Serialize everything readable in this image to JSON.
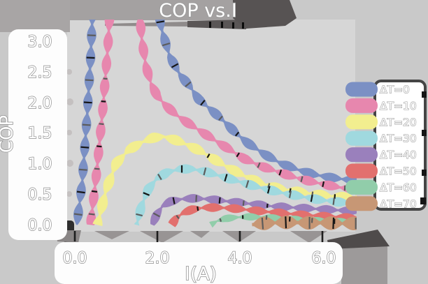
{
  "title": "COP vs.I",
  "x_axis": {
    "label": "I(A)",
    "ticks": [
      "0.0",
      "2.0",
      "4.0",
      "6.0"
    ]
  },
  "y_axis": {
    "label": "COP",
    "ticks": [
      "3.0",
      "2.5",
      "2.0",
      "1.5",
      "1.0",
      "0.5",
      "0.0"
    ]
  },
  "legend": {
    "entries": [
      {
        "label": "ΔT=0",
        "color": "#7b90c4"
      },
      {
        "label": "ΔT=10",
        "color": "#e787ae"
      },
      {
        "label": "ΔT=20",
        "color": "#f2ee8f"
      },
      {
        "label": "ΔT=30",
        "color": "#a0d9df"
      },
      {
        "label": "ΔT=40",
        "color": "#9a80bc"
      },
      {
        "label": "ΔT=50",
        "color": "#e2706e"
      },
      {
        "label": "ΔT=60",
        "color": "#91cdaa"
      },
      {
        "label": "ΔT=70",
        "color": "#c79775"
      }
    ]
  },
  "chart_data": {
    "type": "line",
    "style": "hand-drawn ribbon strokes with tick markers",
    "title": "COP vs.I",
    "xlabel": "I(A)",
    "ylabel": "COP",
    "xlim": [
      -0.2,
      6.9
    ],
    "ylim": [
      -0.12,
      3.35
    ],
    "x_ticks": [
      0.0,
      2.0,
      4.0,
      6.0
    ],
    "y_ticks": [
      0.0,
      0.5,
      1.0,
      1.5,
      2.0,
      2.5,
      3.0
    ],
    "grid": false,
    "legend_position": "right",
    "series": [
      {
        "name": "ΔT=0",
        "color": "#7b90c4",
        "width": 13,
        "points": [
          [
            0.05,
            0
          ],
          [
            0.18,
            0.7
          ],
          [
            0.3,
            1.8
          ],
          [
            0.38,
            2.7
          ],
          [
            0.44,
            3.6
          ],
          [
            2.0,
            3.6
          ],
          [
            2.1,
            3.2
          ],
          [
            2.3,
            2.75
          ],
          [
            2.55,
            2.45
          ],
          [
            2.8,
            2.25
          ],
          [
            3.0,
            2.05
          ],
          [
            3.3,
            1.88
          ],
          [
            3.6,
            1.7
          ],
          [
            3.9,
            1.5
          ],
          [
            4.2,
            1.33
          ],
          [
            4.6,
            1.15
          ],
          [
            5.0,
            1.0
          ],
          [
            5.4,
            0.9
          ],
          [
            5.8,
            0.82
          ],
          [
            6.2,
            0.77
          ],
          [
            6.55,
            0.74
          ],
          [
            6.85,
            0.72
          ]
        ]
      },
      {
        "name": "ΔT=10",
        "color": "#e787ae",
        "width": 13,
        "points": [
          [
            0.38,
            0
          ],
          [
            0.52,
            0.8
          ],
          [
            0.68,
            1.9
          ],
          [
            0.8,
            2.9
          ],
          [
            0.86,
            3.6
          ],
          [
            1.55,
            3.6
          ],
          [
            1.62,
            3.05
          ],
          [
            1.72,
            2.6
          ],
          [
            1.85,
            2.3
          ],
          [
            2.0,
            2.1
          ],
          [
            2.2,
            1.95
          ],
          [
            2.45,
            1.8
          ],
          [
            2.7,
            1.68
          ],
          [
            3.0,
            1.55
          ],
          [
            3.3,
            1.42
          ],
          [
            3.7,
            1.25
          ],
          [
            4.1,
            1.08
          ],
          [
            4.5,
            0.96
          ],
          [
            4.9,
            0.87
          ],
          [
            5.3,
            0.78
          ],
          [
            5.7,
            0.71
          ],
          [
            6.1,
            0.65
          ],
          [
            6.5,
            0.6
          ],
          [
            6.85,
            0.58
          ]
        ]
      },
      {
        "name": "ΔT=20",
        "color": "#f2ee8f",
        "width": 14,
        "points": [
          [
            0.55,
            0
          ],
          [
            0.75,
            0.55
          ],
          [
            1.0,
            1.0
          ],
          [
            1.3,
            1.22
          ],
          [
            1.6,
            1.34
          ],
          [
            1.9,
            1.42
          ],
          [
            2.15,
            1.44
          ],
          [
            2.45,
            1.38
          ],
          [
            2.75,
            1.3
          ],
          [
            3.05,
            1.2
          ],
          [
            3.35,
            1.08
          ],
          [
            3.7,
            0.94
          ],
          [
            4.1,
            0.8
          ],
          [
            4.5,
            0.68
          ],
          [
            4.9,
            0.6
          ],
          [
            5.3,
            0.55
          ],
          [
            5.8,
            0.5
          ],
          [
            6.3,
            0.46
          ],
          [
            6.85,
            0.44
          ]
        ]
      },
      {
        "name": "ΔT=30",
        "color": "#a0d9df",
        "width": 13,
        "points": [
          [
            1.5,
            0
          ],
          [
            1.62,
            0.32
          ],
          [
            1.78,
            0.58
          ],
          [
            1.98,
            0.75
          ],
          [
            2.25,
            0.86
          ],
          [
            2.55,
            0.91
          ],
          [
            2.85,
            0.91
          ],
          [
            3.15,
            0.87
          ],
          [
            3.5,
            0.8
          ],
          [
            3.9,
            0.72
          ],
          [
            4.3,
            0.64
          ],
          [
            4.7,
            0.57
          ],
          [
            5.1,
            0.51
          ],
          [
            5.5,
            0.46
          ],
          [
            5.9,
            0.41
          ],
          [
            6.4,
            0.37
          ],
          [
            6.85,
            0.35
          ]
        ]
      },
      {
        "name": "ΔT=40",
        "color": "#9a80bc",
        "width": 12,
        "points": [
          [
            1.88,
            0
          ],
          [
            1.98,
            0.16
          ],
          [
            2.12,
            0.3
          ],
          [
            2.32,
            0.38
          ],
          [
            2.6,
            0.42
          ],
          [
            2.9,
            0.43
          ],
          [
            3.2,
            0.42
          ],
          [
            3.6,
            0.39
          ],
          [
            4.0,
            0.36
          ],
          [
            4.4,
            0.33
          ],
          [
            4.8,
            0.3
          ],
          [
            5.3,
            0.28
          ],
          [
            5.8,
            0.26
          ],
          [
            6.3,
            0.24
          ],
          [
            6.85,
            0.22
          ]
        ]
      },
      {
        "name": "ΔT=50",
        "color": "#e2706e",
        "width": 12,
        "points": [
          [
            2.35,
            0
          ],
          [
            2.46,
            0.11
          ],
          [
            2.62,
            0.19
          ],
          [
            2.85,
            0.25
          ],
          [
            3.15,
            0.28
          ],
          [
            3.45,
            0.28
          ],
          [
            3.75,
            0.27
          ],
          [
            4.1,
            0.25
          ],
          [
            4.5,
            0.22
          ],
          [
            5.0,
            0.19
          ],
          [
            5.5,
            0.16
          ],
          [
            6.0,
            0.14
          ],
          [
            6.45,
            0.12
          ],
          [
            6.85,
            0.11
          ]
        ]
      },
      {
        "name": "ΔT=60",
        "color": "#91cdaa",
        "width": 10,
        "points": [
          [
            3.3,
            0
          ],
          [
            3.45,
            0.06
          ],
          [
            3.65,
            0.1
          ],
          [
            3.9,
            0.12
          ],
          [
            4.2,
            0.13
          ],
          [
            4.6,
            0.12
          ],
          [
            5.0,
            0.1
          ],
          [
            5.5,
            0.08
          ],
          [
            6.0,
            0.06
          ],
          [
            6.5,
            0.05
          ],
          [
            6.85,
            0.04
          ]
        ]
      },
      {
        "name": "ΔT=70",
        "color": "#c79775",
        "width": 19,
        "points": [
          [
            4.3,
            0.0
          ],
          [
            4.55,
            0.02
          ],
          [
            4.85,
            0.03
          ],
          [
            5.2,
            0.04
          ],
          [
            5.6,
            0.03
          ],
          [
            6.0,
            0.03
          ],
          [
            6.4,
            0.02
          ],
          [
            6.85,
            0.02
          ]
        ]
      }
    ]
  }
}
